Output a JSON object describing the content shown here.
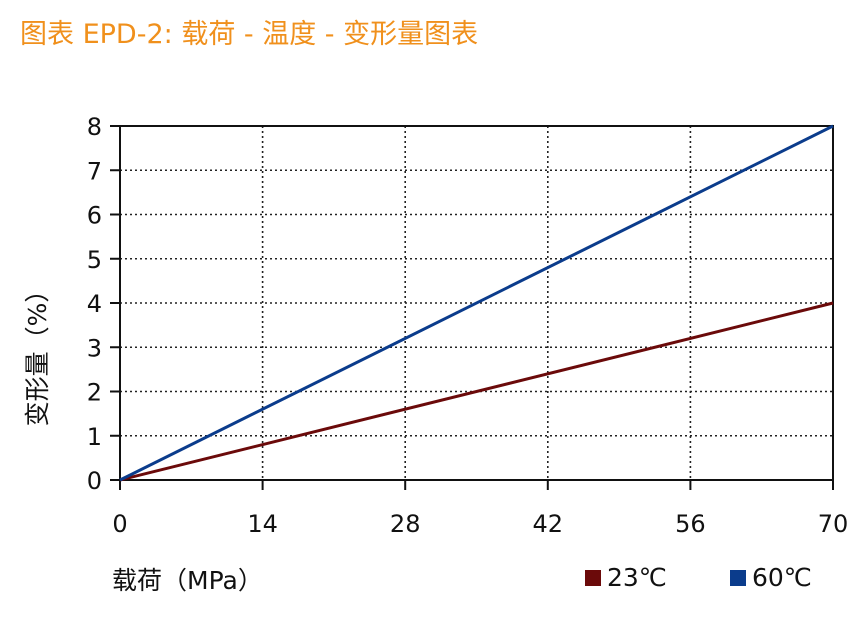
{
  "header": {
    "title": "图表 EPD-2: 载荷 - 温度 - 变形量图表"
  },
  "chart_data": {
    "type": "line",
    "title": "图表 EPD-2: 载荷 - 温度 - 变形量图表",
    "xlabel": "载荷（MPa）",
    "ylabel": "变形量（%）",
    "xlim": [
      0,
      70
    ],
    "ylim": [
      0,
      8
    ],
    "xticks": [
      0,
      14,
      28,
      42,
      56,
      70
    ],
    "yticks": [
      0,
      1,
      2,
      3,
      4,
      5,
      6,
      7,
      8
    ],
    "grid": true,
    "legend_position": "bottom-right",
    "series": [
      {
        "name": "23℃",
        "color": "#6b0a0a",
        "x": [
          0,
          70
        ],
        "y": [
          0,
          4
        ]
      },
      {
        "name": "60℃",
        "color": "#0b3c8c",
        "x": [
          0,
          70
        ],
        "y": [
          0,
          8
        ]
      }
    ]
  }
}
